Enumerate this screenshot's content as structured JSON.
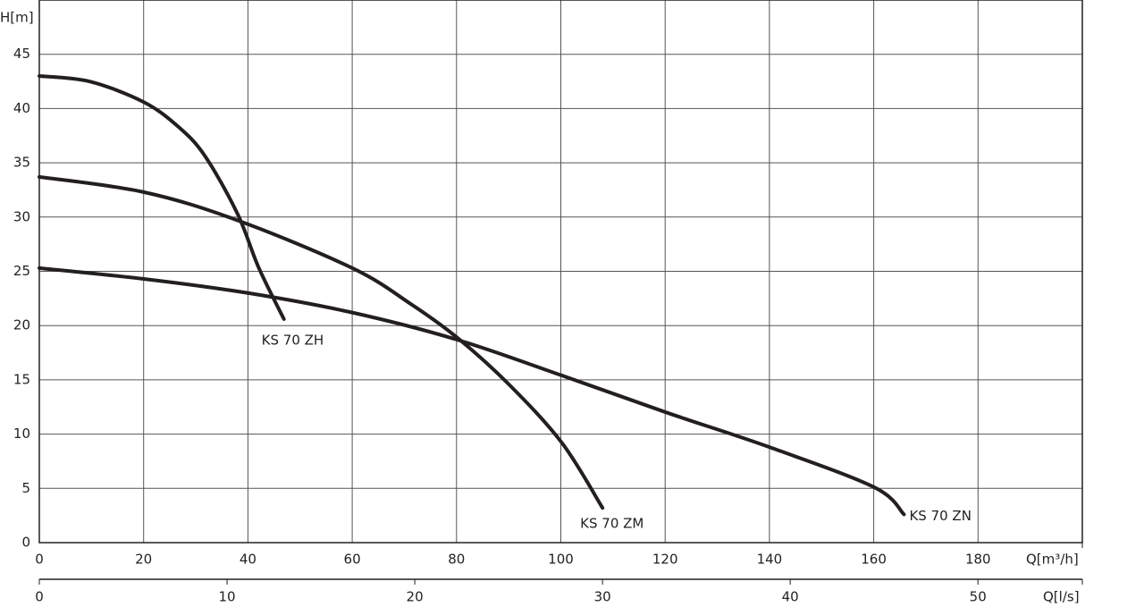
{
  "chart_data": {
    "type": "line",
    "y_label": "H[m]",
    "x_label": "Q[m³/h]",
    "x2_label": "Q[l/s]",
    "xlim": [
      0,
      200
    ],
    "xticks": [
      0,
      20,
      40,
      60,
      80,
      100,
      120,
      140,
      160,
      180
    ],
    "x2lim": [
      0,
      55.56
    ],
    "x2ticks": [
      0,
      10,
      20,
      30,
      40,
      50
    ],
    "ylim": [
      0,
      50
    ],
    "yticks": [
      0,
      5,
      10,
      15,
      20,
      25,
      30,
      35,
      40,
      45
    ],
    "grid": true,
    "series": [
      {
        "name": "KS 70 ZH",
        "color": "#231f20",
        "x": [
          0,
          9.6,
          20,
          26.7,
          31.8,
          38,
          42.1,
          46.9
        ],
        "values": [
          43,
          42.5,
          40.6,
          38.3,
          35.6,
          30.3,
          25.3,
          20.6
        ]
      },
      {
        "name": "KS 70 ZM",
        "color": "#231f20",
        "x": [
          0,
          20,
          38,
          60,
          71.2,
          80.1,
          90,
          100.2,
          108
        ],
        "values": [
          33.7,
          32.3,
          29.7,
          25.3,
          22,
          18.9,
          14.6,
          9.2,
          3.2
        ]
      },
      {
        "name": "KS 70 ZN",
        "color": "#231f20",
        "x": [
          0,
          20,
          40,
          60,
          80.1,
          100.2,
          120.2,
          140,
          160.1,
          165.8
        ],
        "values": [
          25.3,
          24.3,
          23,
          21.2,
          18.7,
          15.4,
          12,
          8.8,
          5.1,
          2.6
        ]
      }
    ]
  }
}
